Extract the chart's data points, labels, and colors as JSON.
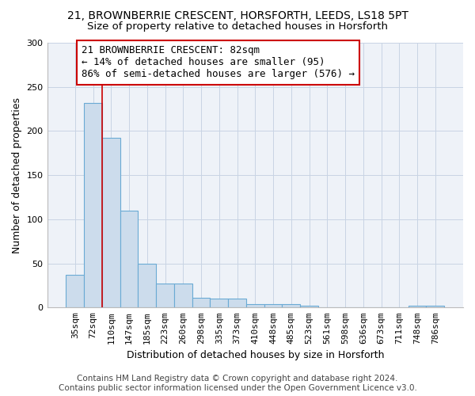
{
  "title1": "21, BROWNBERRIE CRESCENT, HORSFORTH, LEEDS, LS18 5PT",
  "title2": "Size of property relative to detached houses in Horsforth",
  "xlabel": "Distribution of detached houses by size in Horsforth",
  "ylabel": "Number of detached properties",
  "categories": [
    "35sqm",
    "72sqm",
    "110sqm",
    "147sqm",
    "185sqm",
    "223sqm",
    "260sqm",
    "298sqm",
    "335sqm",
    "373sqm",
    "410sqm",
    "448sqm",
    "485sqm",
    "523sqm",
    "561sqm",
    "598sqm",
    "636sqm",
    "673sqm",
    "711sqm",
    "748sqm",
    "786sqm"
  ],
  "values": [
    37,
    232,
    192,
    110,
    50,
    27,
    27,
    11,
    10,
    10,
    4,
    4,
    4,
    2,
    0,
    0,
    0,
    0,
    0,
    2,
    2
  ],
  "bar_color": "#ccdcec",
  "bar_edge_color": "#6aaad4",
  "bar_edge_width": 0.8,
  "grid_color": "#c8d4e4",
  "bg_color": "#eef2f8",
  "annotation_text": "21 BROWNBERRIE CRESCENT: 82sqm\n← 14% of detached houses are smaller (95)\n86% of semi-detached houses are larger (576) →",
  "annotation_box_color": "#ffffff",
  "annotation_box_edge_color": "#cc0000",
  "red_line_x": 1.5,
  "ylim": [
    0,
    300
  ],
  "yticks": [
    0,
    50,
    100,
    150,
    200,
    250,
    300
  ],
  "footer1": "Contains HM Land Registry data © Crown copyright and database right 2024.",
  "footer2": "Contains public sector information licensed under the Open Government Licence v3.0.",
  "title1_fontsize": 10,
  "title2_fontsize": 9.5,
  "xlabel_fontsize": 9,
  "ylabel_fontsize": 9,
  "tick_fontsize": 8,
  "footer_fontsize": 7.5,
  "annotation_fontsize": 9
}
